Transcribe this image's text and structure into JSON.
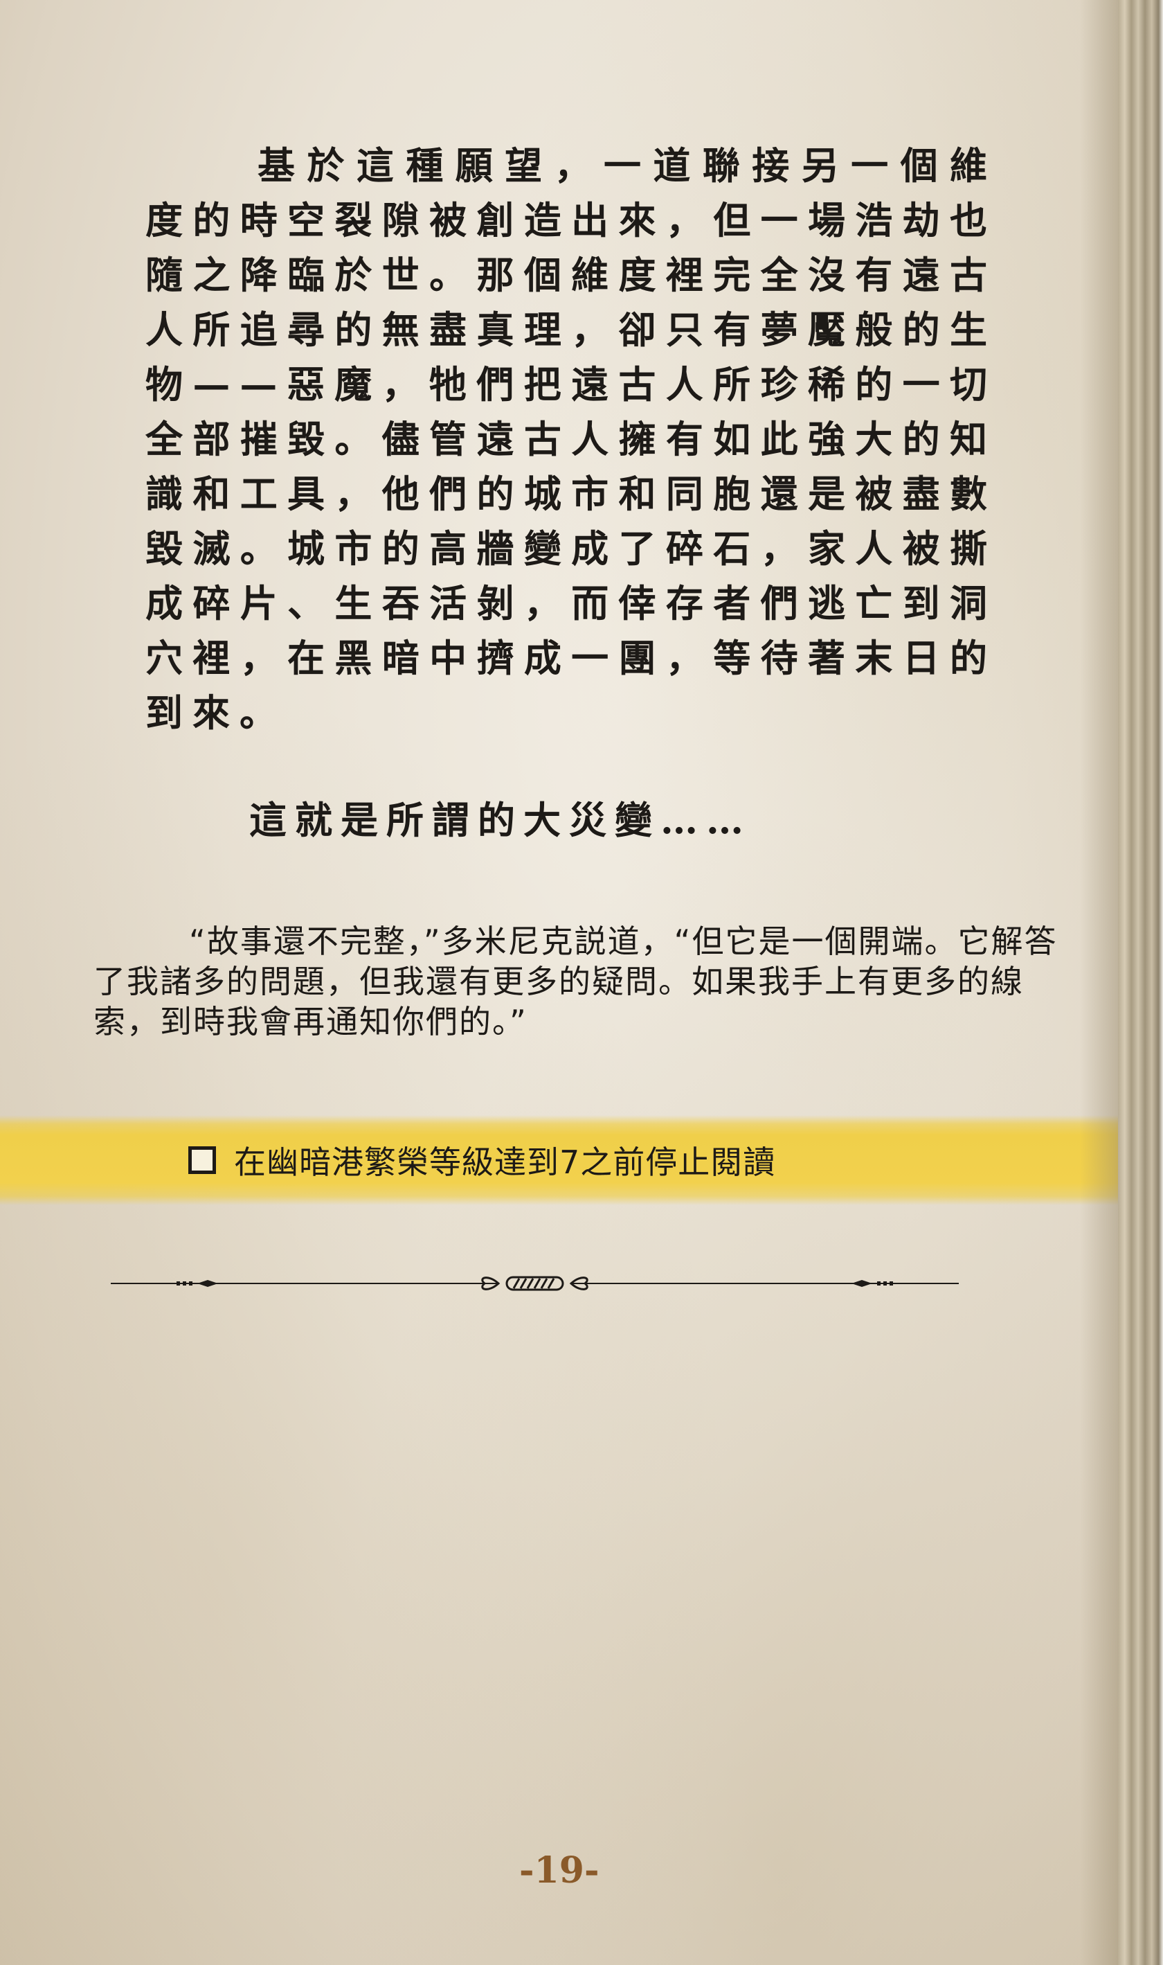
{
  "calligraphy_paragraph": "基於這種願望，一道聯接另一個維度的時空裂隙被創造出來，但一場浩劫也隨之降臨於世。那個維度裡完全沒有遠古人所追尋的無盡真理，卻只有夢魘般的生物——惡魔，牠們把遠古人所珍稀的一切全部摧毀。儘管遠古人擁有如此強大的知識和工具，他們的城市和同胞還是被盡數毀滅。城市的高牆變成了碎石，家人被撕成碎片、生吞活剝，而倖存者們逃亡到洞穴裡，在黑暗中擠成一團，等待著末日的到來。",
  "catastrophe_line": "這就是所謂的大災變……",
  "quote_paragraph": "“故事還不完整，”多米尼克説道，“但它是一個開端。它解答了我諸多的問題，但我還有更多的疑問。如果我手上有更多的線索，到時我會再通知你們的。”",
  "task": {
    "checked": false,
    "label": "在幽暗港繁榮等級達到7之前停止閱讀"
  },
  "page_number": "-19-",
  "colors": {
    "highlight": "#f2d14d",
    "text": "#1d1a17",
    "page_number": "#8a5a2a",
    "paper": "#e9e2d5"
  }
}
